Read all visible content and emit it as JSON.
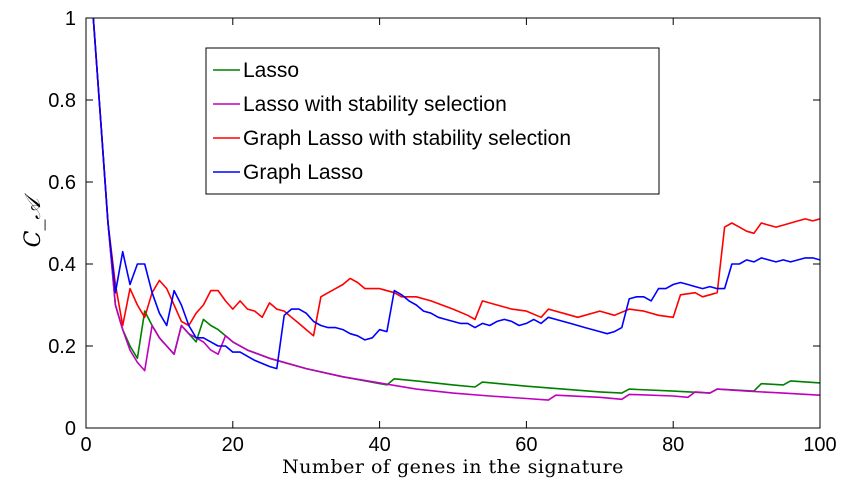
{
  "chart_data": {
    "type": "line",
    "title": "",
    "xlabel": "Number of genes in the signature",
    "ylabel": "C_𝒜",
    "xlim": [
      0,
      100
    ],
    "ylim": [
      0,
      1
    ],
    "xticks": [
      0,
      20,
      40,
      60,
      80,
      100
    ],
    "yticks": [
      0,
      0.2,
      0.4,
      0.6,
      0.8,
      1
    ],
    "ytick_labels": [
      "0",
      "0.2",
      "0.4",
      "0.6",
      "0.8",
      "1"
    ],
    "grid": false,
    "legend_position": "top-center",
    "series": [
      {
        "name": "Lasso",
        "color": "#008000",
        "points": [
          [
            1,
            1.0
          ],
          [
            2,
            0.75
          ],
          [
            3,
            0.5
          ],
          [
            4,
            0.3
          ],
          [
            5,
            0.24
          ],
          [
            6,
            0.2
          ],
          [
            7,
            0.17
          ],
          [
            8,
            0.285
          ],
          [
            9,
            0.25
          ],
          [
            10,
            0.22
          ],
          [
            11,
            0.2
          ],
          [
            12,
            0.18
          ],
          [
            13,
            0.25
          ],
          [
            14,
            0.23
          ],
          [
            15,
            0.21
          ],
          [
            16,
            0.265
          ],
          [
            17,
            0.25
          ],
          [
            18,
            0.24
          ],
          [
            19,
            0.225
          ],
          [
            20,
            0.21
          ],
          [
            22,
            0.19
          ],
          [
            25,
            0.17
          ],
          [
            30,
            0.145
          ],
          [
            35,
            0.125
          ],
          [
            38,
            0.115
          ],
          [
            41,
            0.105
          ],
          [
            42,
            0.12
          ],
          [
            45,
            0.115
          ],
          [
            50,
            0.105
          ],
          [
            53,
            0.1
          ],
          [
            54,
            0.112
          ],
          [
            60,
            0.102
          ],
          [
            65,
            0.095
          ],
          [
            70,
            0.088
          ],
          [
            73,
            0.085
          ],
          [
            74,
            0.095
          ],
          [
            80,
            0.09
          ],
          [
            85,
            0.085
          ],
          [
            86,
            0.095
          ],
          [
            91,
            0.09
          ],
          [
            92,
            0.108
          ],
          [
            95,
            0.105
          ],
          [
            96,
            0.115
          ],
          [
            100,
            0.11
          ]
        ]
      },
      {
        "name": "Lasso with stability selection",
        "color": "#BF00BF",
        "points": [
          [
            1,
            1.0
          ],
          [
            2,
            0.75
          ],
          [
            3,
            0.5
          ],
          [
            4,
            0.3
          ],
          [
            5,
            0.24
          ],
          [
            6,
            0.19
          ],
          [
            7,
            0.16
          ],
          [
            8,
            0.14
          ],
          [
            9,
            0.25
          ],
          [
            10,
            0.22
          ],
          [
            11,
            0.2
          ],
          [
            12,
            0.18
          ],
          [
            13,
            0.25
          ],
          [
            14,
            0.23
          ],
          [
            15,
            0.22
          ],
          [
            16,
            0.21
          ],
          [
            17,
            0.19
          ],
          [
            18,
            0.18
          ],
          [
            19,
            0.225
          ],
          [
            20,
            0.21
          ],
          [
            22,
            0.19
          ],
          [
            25,
            0.17
          ],
          [
            30,
            0.145
          ],
          [
            35,
            0.125
          ],
          [
            40,
            0.11
          ],
          [
            45,
            0.095
          ],
          [
            50,
            0.085
          ],
          [
            55,
            0.078
          ],
          [
            60,
            0.072
          ],
          [
            63,
            0.068
          ],
          [
            64,
            0.08
          ],
          [
            70,
            0.075
          ],
          [
            73,
            0.07
          ],
          [
            74,
            0.082
          ],
          [
            80,
            0.078
          ],
          [
            82,
            0.075
          ],
          [
            83,
            0.088
          ],
          [
            85,
            0.085
          ],
          [
            86,
            0.095
          ],
          [
            90,
            0.09
          ],
          [
            95,
            0.085
          ],
          [
            100,
            0.08
          ]
        ]
      },
      {
        "name": "Graph Lasso with stability selection",
        "color": "#FF0000",
        "points": [
          [
            1,
            1.0
          ],
          [
            2,
            0.75
          ],
          [
            3,
            0.5
          ],
          [
            4,
            0.35
          ],
          [
            5,
            0.25
          ],
          [
            6,
            0.34
          ],
          [
            7,
            0.3
          ],
          [
            8,
            0.27
          ],
          [
            9,
            0.33
          ],
          [
            10,
            0.36
          ],
          [
            11,
            0.34
          ],
          [
            12,
            0.3
          ],
          [
            13,
            0.26
          ],
          [
            14,
            0.25
          ],
          [
            15,
            0.28
          ],
          [
            16,
            0.3
          ],
          [
            17,
            0.335
          ],
          [
            18,
            0.335
          ],
          [
            19,
            0.31
          ],
          [
            20,
            0.29
          ],
          [
            21,
            0.31
          ],
          [
            22,
            0.29
          ],
          [
            23,
            0.285
          ],
          [
            24,
            0.27
          ],
          [
            25,
            0.305
          ],
          [
            26,
            0.29
          ],
          [
            27,
            0.285
          ],
          [
            28,
            0.27
          ],
          [
            29,
            0.255
          ],
          [
            30,
            0.24
          ],
          [
            31,
            0.225
          ],
          [
            32,
            0.32
          ],
          [
            33,
            0.33
          ],
          [
            34,
            0.34
          ],
          [
            35,
            0.35
          ],
          [
            36,
            0.365
          ],
          [
            37,
            0.355
          ],
          [
            38,
            0.34
          ],
          [
            40,
            0.34
          ],
          [
            42,
            0.33
          ],
          [
            43,
            0.32
          ],
          [
            45,
            0.32
          ],
          [
            47,
            0.31
          ],
          [
            50,
            0.29
          ],
          [
            52,
            0.275
          ],
          [
            53,
            0.265
          ],
          [
            54,
            0.31
          ],
          [
            56,
            0.3
          ],
          [
            58,
            0.29
          ],
          [
            60,
            0.285
          ],
          [
            62,
            0.27
          ],
          [
            63,
            0.29
          ],
          [
            65,
            0.28
          ],
          [
            67,
            0.27
          ],
          [
            70,
            0.285
          ],
          [
            72,
            0.275
          ],
          [
            74,
            0.29
          ],
          [
            76,
            0.285
          ],
          [
            78,
            0.275
          ],
          [
            80,
            0.27
          ],
          [
            81,
            0.325
          ],
          [
            83,
            0.33
          ],
          [
            84,
            0.32
          ],
          [
            85,
            0.325
          ],
          [
            86,
            0.33
          ],
          [
            87,
            0.49
          ],
          [
            88,
            0.5
          ],
          [
            89,
            0.49
          ],
          [
            90,
            0.48
          ],
          [
            91,
            0.475
          ],
          [
            92,
            0.5
          ],
          [
            93,
            0.495
          ],
          [
            94,
            0.49
          ],
          [
            95,
            0.495
          ],
          [
            96,
            0.5
          ],
          [
            97,
            0.505
          ],
          [
            98,
            0.51
          ],
          [
            99,
            0.505
          ],
          [
            100,
            0.51
          ]
        ]
      },
      {
        "name": "Graph Lasso",
        "color": "#0000FF",
        "points": [
          [
            1,
            1.0
          ],
          [
            2,
            0.75
          ],
          [
            3,
            0.5
          ],
          [
            4,
            0.33
          ],
          [
            5,
            0.43
          ],
          [
            6,
            0.35
          ],
          [
            7,
            0.4
          ],
          [
            8,
            0.4
          ],
          [
            9,
            0.33
          ],
          [
            10,
            0.28
          ],
          [
            11,
            0.25
          ],
          [
            12,
            0.335
          ],
          [
            13,
            0.3
          ],
          [
            14,
            0.25
          ],
          [
            15,
            0.22
          ],
          [
            16,
            0.22
          ],
          [
            17,
            0.21
          ],
          [
            18,
            0.2
          ],
          [
            19,
            0.2
          ],
          [
            20,
            0.185
          ],
          [
            21,
            0.185
          ],
          [
            22,
            0.175
          ],
          [
            23,
            0.165
          ],
          [
            25,
            0.15
          ],
          [
            26,
            0.145
          ],
          [
            27,
            0.275
          ],
          [
            28,
            0.29
          ],
          [
            29,
            0.29
          ],
          [
            30,
            0.28
          ],
          [
            31,
            0.26
          ],
          [
            32,
            0.25
          ],
          [
            33,
            0.245
          ],
          [
            34,
            0.245
          ],
          [
            35,
            0.24
          ],
          [
            36,
            0.23
          ],
          [
            37,
            0.225
          ],
          [
            38,
            0.215
          ],
          [
            39,
            0.22
          ],
          [
            40,
            0.24
          ],
          [
            41,
            0.235
          ],
          [
            42,
            0.335
          ],
          [
            43,
            0.325
          ],
          [
            44,
            0.31
          ],
          [
            45,
            0.3
          ],
          [
            46,
            0.285
          ],
          [
            47,
            0.28
          ],
          [
            48,
            0.27
          ],
          [
            49,
            0.265
          ],
          [
            50,
            0.26
          ],
          [
            51,
            0.255
          ],
          [
            52,
            0.255
          ],
          [
            53,
            0.245
          ],
          [
            54,
            0.255
          ],
          [
            55,
            0.25
          ],
          [
            56,
            0.26
          ],
          [
            57,
            0.265
          ],
          [
            58,
            0.26
          ],
          [
            59,
            0.25
          ],
          [
            60,
            0.255
          ],
          [
            61,
            0.265
          ],
          [
            62,
            0.255
          ],
          [
            63,
            0.27
          ],
          [
            64,
            0.265
          ],
          [
            65,
            0.26
          ],
          [
            66,
            0.255
          ],
          [
            67,
            0.25
          ],
          [
            68,
            0.245
          ],
          [
            69,
            0.24
          ],
          [
            70,
            0.235
          ],
          [
            71,
            0.23
          ],
          [
            72,
            0.235
          ],
          [
            73,
            0.245
          ],
          [
            74,
            0.315
          ],
          [
            75,
            0.32
          ],
          [
            76,
            0.32
          ],
          [
            77,
            0.31
          ],
          [
            78,
            0.34
          ],
          [
            79,
            0.34
          ],
          [
            80,
            0.35
          ],
          [
            81,
            0.355
          ],
          [
            82,
            0.35
          ],
          [
            83,
            0.345
          ],
          [
            84,
            0.34
          ],
          [
            85,
            0.345
          ],
          [
            86,
            0.34
          ],
          [
            87,
            0.34
          ],
          [
            88,
            0.4
          ],
          [
            89,
            0.4
          ],
          [
            90,
            0.41
          ],
          [
            91,
            0.405
          ],
          [
            92,
            0.415
          ],
          [
            93,
            0.41
          ],
          [
            94,
            0.405
          ],
          [
            95,
            0.41
          ],
          [
            96,
            0.405
          ],
          [
            97,
            0.41
          ],
          [
            98,
            0.415
          ],
          [
            99,
            0.415
          ],
          [
            100,
            0.41
          ]
        ]
      }
    ]
  }
}
